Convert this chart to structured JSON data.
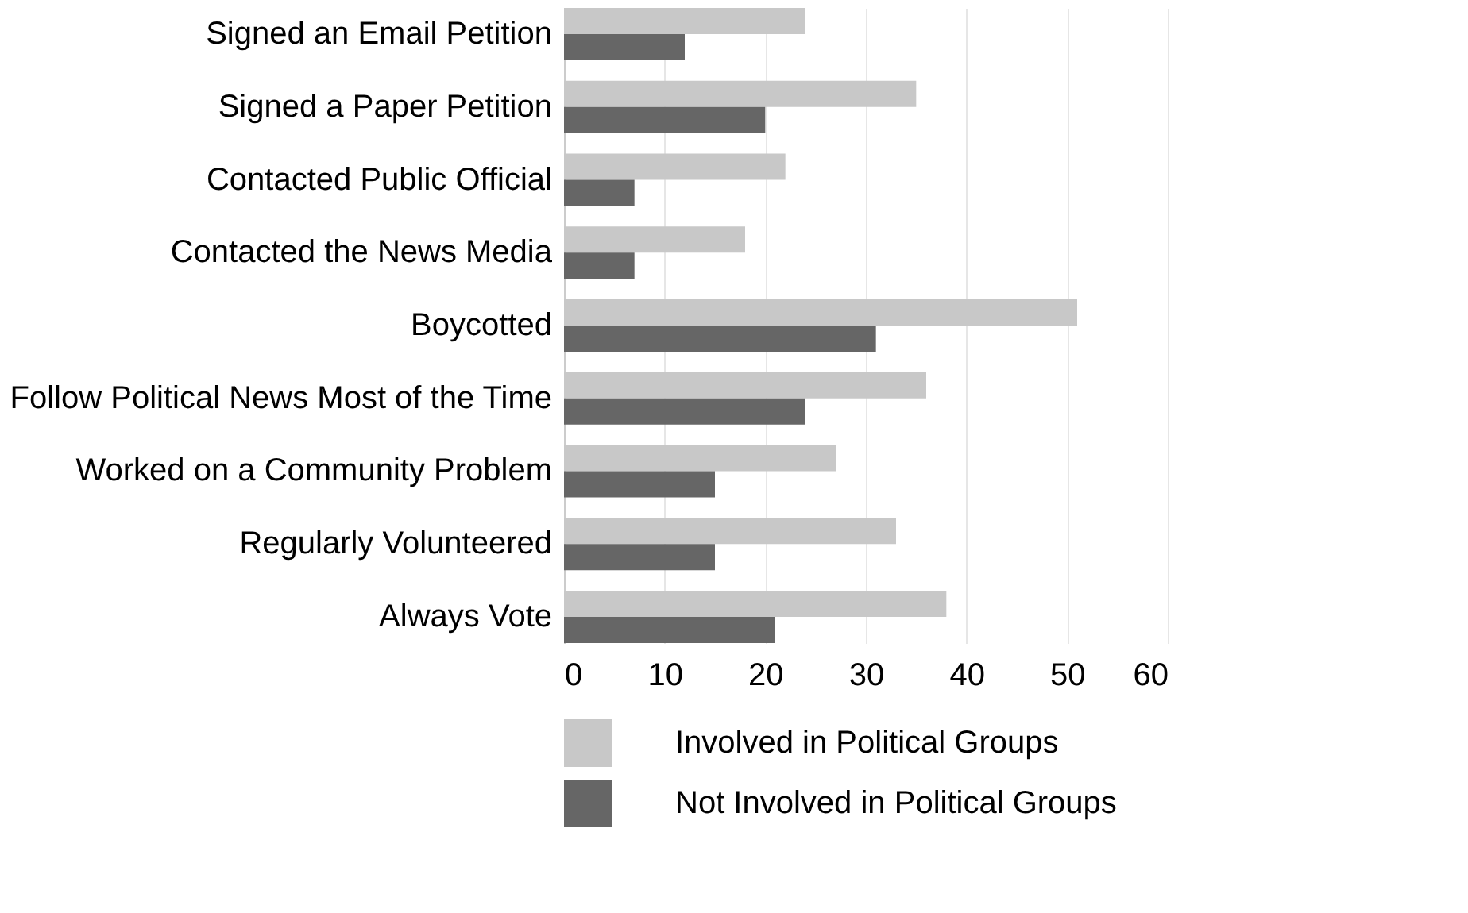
{
  "chart_data": {
    "type": "bar",
    "orientation": "horizontal",
    "categories": [
      "Signed an Email Petition",
      "Signed a Paper Petition",
      "Contacted Public Official",
      "Contacted the News Media",
      "Boycotted",
      "Follow Political News Most of the Time",
      "Worked on a Community Problem",
      "Regularly Volunteered",
      "Always Vote"
    ],
    "series": [
      {
        "name": "Involved in Political Groups",
        "color": "#c8c8c8",
        "values": [
          24,
          35,
          22,
          18,
          51,
          36,
          27,
          33,
          38
        ]
      },
      {
        "name": "Not Involved in Political Groups",
        "color": "#666666",
        "values": [
          12,
          20,
          7,
          7,
          31,
          24,
          15,
          15,
          21
        ]
      }
    ],
    "xlim": [
      0,
      60
    ],
    "xticks": [
      0,
      10,
      20,
      30,
      40,
      50,
      60
    ],
    "grid": "x",
    "legend": "bottom"
  }
}
